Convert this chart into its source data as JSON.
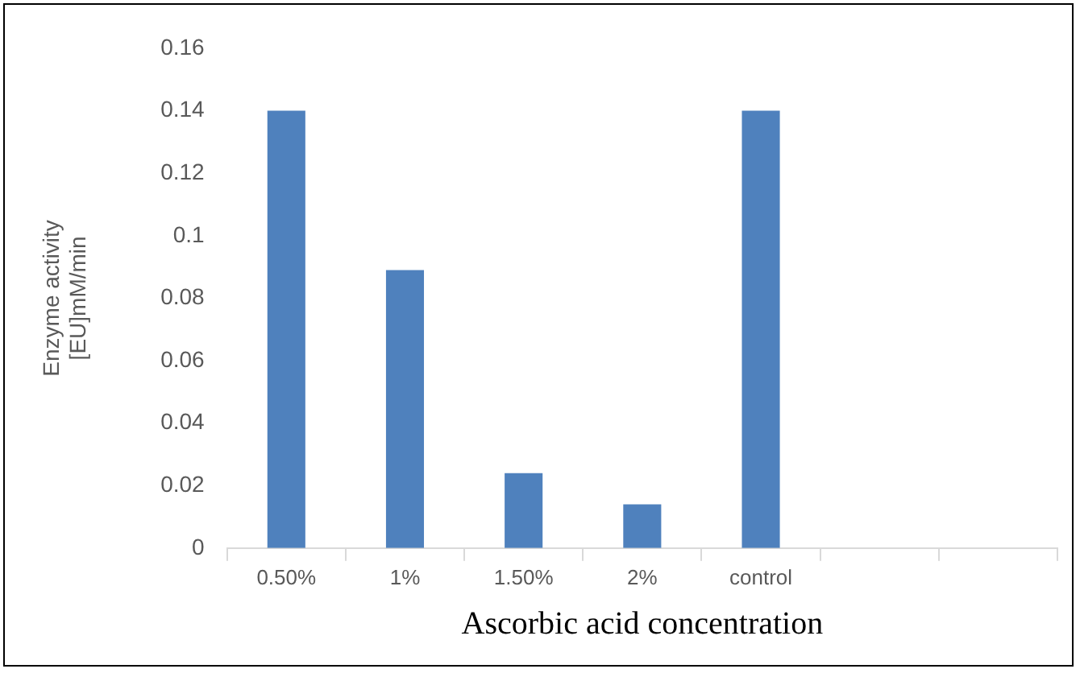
{
  "chart_data": {
    "type": "bar",
    "xlabel": "Ascorbic acid concentration",
    "ylabel": "Enzyme activity\n[EU]mM/min",
    "categories": [
      "0.50%",
      "1%",
      "1.50%",
      "2%",
      "control",
      null,
      null
    ],
    "values": [
      0.14,
      0.089,
      0.024,
      0.014,
      0.14,
      null,
      null
    ],
    "color": "#4f81bd",
    "ylim": [
      0,
      0.16
    ],
    "yticks": [
      0,
      0.02,
      0.04,
      0.06,
      0.08,
      0.1,
      0.12,
      0.14,
      0.16
    ],
    "grid": false,
    "legend": false
  }
}
